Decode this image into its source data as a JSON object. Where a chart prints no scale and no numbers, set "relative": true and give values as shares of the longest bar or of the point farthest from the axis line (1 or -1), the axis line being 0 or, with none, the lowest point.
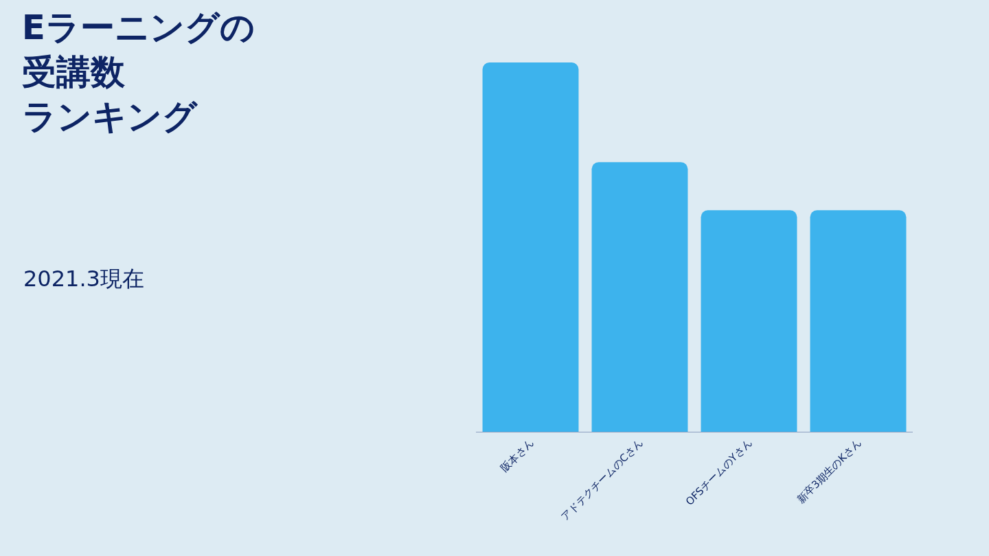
{
  "chart_data": {
    "type": "bar",
    "title": "Eラーニングの受講数ランキング",
    "subtitle": "2021.3現在",
    "categories": [
      "阪本さん",
      "アドテクチームのCさん",
      "OFSチームのYさん",
      "新卒3期生のKさん"
    ],
    "values": [
      1,
      0.73,
      0.6,
      0.6
    ],
    "color": "#3db3ed",
    "relative": true
  }
}
